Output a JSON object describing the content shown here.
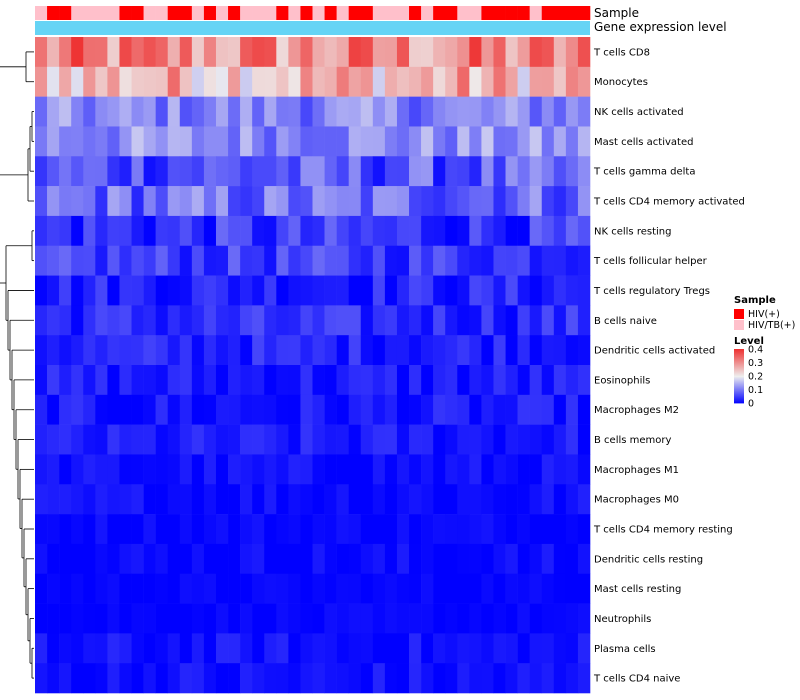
{
  "chart_data": {
    "type": "heatmap",
    "title": "",
    "column_count": 46,
    "annotation_labels": [
      "Sample",
      "Gene expression level"
    ],
    "sample_annotation": [
      "HIV/TB(+)",
      "HIV(+)",
      "HIV(+)",
      "HIV/TB(+)",
      "HIV/TB(+)",
      "HIV/TB(+)",
      "HIV/TB(+)",
      "HIV(+)",
      "HIV(+)",
      "HIV/TB(+)",
      "HIV/TB(+)",
      "HIV(+)",
      "HIV(+)",
      "HIV/TB(+)",
      "HIV(+)",
      "HIV/TB(+)",
      "HIV(+)",
      "HIV/TB(+)",
      "HIV/TB(+)",
      "HIV/TB(+)",
      "HIV(+)",
      "HIV/TB(+)",
      "HIV(+)",
      "HIV/TB(+)",
      "HIV(+)",
      "HIV/TB(+)",
      "HIV(+)",
      "HIV(+)",
      "HIV/TB(+)",
      "HIV/TB(+)",
      "HIV/TB(+)",
      "HIV(+)",
      "HIV/TB(+)",
      "HIV(+)",
      "HIV(+)",
      "HIV/TB(+)",
      "HIV/TB(+)",
      "HIV(+)",
      "HIV(+)",
      "HIV(+)",
      "HIV(+)",
      "HIV/TB(+)",
      "HIV(+)",
      "HIV(+)",
      "HIV(+)",
      "HIV(+)"
    ],
    "rows": [
      "T cells CD8",
      "Monocytes",
      "NK cells activated",
      "Mast cells activated",
      "T cells gamma delta",
      "T cells CD4 memory activated",
      "NK cells resting",
      "T cells follicular helper",
      "T cells regulatory  Tregs",
      "B cells naive",
      "Dendritic cells activated",
      "Eosinophils",
      "Macrophages M2",
      "B cells memory",
      "Macrophages M1",
      "Macrophages M0",
      "T cells CD4 memory resting",
      "Dendritic cells resting",
      "Mast cells resting",
      "Neutrophils",
      "Plasma cells",
      "T cells CD4 naive"
    ],
    "row_base_levels": [
      0.3,
      0.26,
      0.11,
      0.12,
      0.07,
      0.09,
      0.04,
      0.05,
      0.03,
      0.035,
      0.03,
      0.02,
      0.015,
      0.02,
      0.01,
      0.01,
      0.005,
      0.005,
      0.003,
      0.003,
      0.01,
      0.01
    ],
    "row_variation": [
      0.1,
      0.09,
      0.05,
      0.05,
      0.06,
      0.06,
      0.05,
      0.04,
      0.035,
      0.035,
      0.03,
      0.03,
      0.03,
      0.025,
      0.02,
      0.02,
      0.015,
      0.02,
      0.01,
      0.01,
      0.025,
      0.025
    ],
    "color_scale": {
      "min": 0,
      "mid": 0.2,
      "max": 0.4,
      "low": "#0000FF",
      "middle": "#EEEEEE",
      "high": "#EE3333"
    },
    "legend": {
      "sample_title": "Sample",
      "sample_entries": [
        {
          "label": "HIV(+)",
          "color": "#FF0000"
        },
        {
          "label": "HIV/TB(+)",
          "color": "#FFC0CB"
        }
      ],
      "level_title": "Level",
      "level_ticks": [
        {
          "value": 0.4,
          "label": "0.4"
        },
        {
          "value": 0.3,
          "label": "0.3"
        },
        {
          "value": 0.2,
          "label": "0.2"
        },
        {
          "value": 0.1,
          "label": "0.1"
        },
        {
          "value": 0,
          "label": "0"
        }
      ]
    },
    "annotation_colors": {
      "HIV(+)": "#FF0000",
      "HIV/TB(+)": "#FFC0CB",
      "Gene expression level": "#66D4F5"
    }
  }
}
